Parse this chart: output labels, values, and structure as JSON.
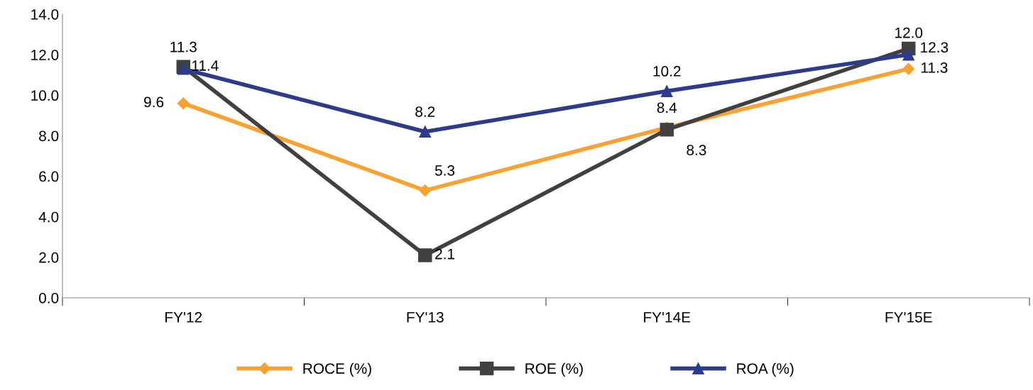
{
  "chart_data": {
    "type": "line",
    "categories": [
      "FY'12",
      "FY'13",
      "FY'14E",
      "FY'15E"
    ],
    "series": [
      {
        "name": "ROCE (%)",
        "color": "#f8a234",
        "marker": "diamond",
        "values": [
          9.6,
          5.3,
          8.4,
          11.3
        ],
        "value_labels": [
          "9.6",
          "5.3",
          "8.4",
          "11.3"
        ]
      },
      {
        "name": "ROE (%)",
        "color": "#404040",
        "marker": "square",
        "values": [
          11.4,
          2.1,
          8.3,
          12.3
        ],
        "value_labels": [
          "11.4",
          "2.1",
          "8.3",
          "12.3"
        ]
      },
      {
        "name": "ROA (%)",
        "color": "#2e3b8c",
        "marker": "triangle",
        "values": [
          11.3,
          8.2,
          10.2,
          12.0
        ],
        "value_labels": [
          "11.3",
          "8.2",
          "10.2",
          "12.0"
        ]
      }
    ],
    "ylim": [
      0,
      14
    ],
    "yticks": [
      {
        "value": 0,
        "label": "0.0"
      },
      {
        "value": 2,
        "label": "2.0"
      },
      {
        "value": 4,
        "label": "4.0"
      },
      {
        "value": 6,
        "label": "6.0"
      },
      {
        "value": 8,
        "label": "8.0"
      },
      {
        "value": 10,
        "label": "10.0"
      },
      {
        "value": 12,
        "label": "12.0"
      },
      {
        "value": 14,
        "label": "14.0"
      }
    ],
    "grid": false,
    "legend": "bottom",
    "line_style": "solid"
  }
}
